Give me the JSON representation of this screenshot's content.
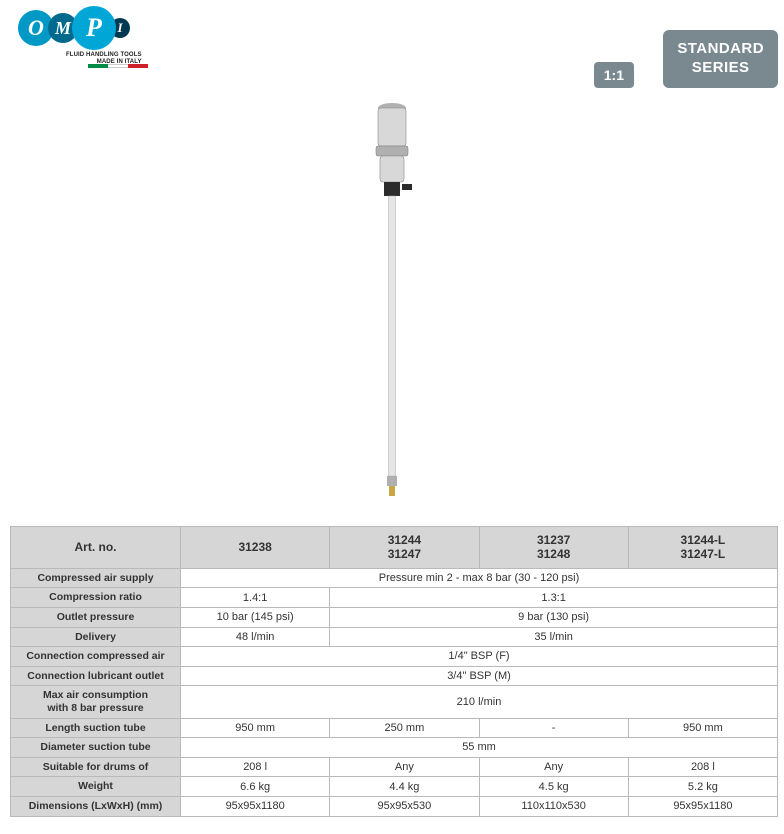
{
  "brand": {
    "letters": [
      "O",
      "M",
      "P",
      "I"
    ],
    "subline1": "FLUID HANDLING TOOLS",
    "subline2": "MADE IN ITALY",
    "flag_colors": [
      "#008C45",
      "#ffffff",
      "#CD212A"
    ]
  },
  "badges": {
    "ratio": "1:1",
    "series_line1": "STANDARD",
    "series_line2": "SERIES",
    "series_bg": "#7a8890"
  },
  "product_image": {
    "body_color": "#d8d8d8",
    "cap_color": "#b0b0b0",
    "collar_color": "#2b2b2b",
    "tube_color": "#e6e6e6",
    "tip_color": "#c9a742"
  },
  "table": {
    "header_bg": "#d6d6d6",
    "border_color": "#b9b9b9",
    "label_fontsize": 10.5,
    "cell_fontsize": 11,
    "columns": {
      "label_header": "Art. no.",
      "c1": [
        "31238"
      ],
      "c2": [
        "31244",
        "31247"
      ],
      "c3": [
        "31237",
        "31248"
      ],
      "c4": [
        "31244-L",
        "31247-L"
      ]
    },
    "rows": [
      {
        "label": "Compressed air supply",
        "span": 4,
        "vals": [
          "Pressure min 2 - max 8 bar (30 - 120 psi)"
        ]
      },
      {
        "label": "Compression ratio",
        "spans": [
          1,
          3
        ],
        "vals": [
          "1.4:1",
          "1.3:1"
        ]
      },
      {
        "label": "Outlet pressure",
        "spans": [
          1,
          3
        ],
        "vals": [
          "10 bar (145 psi)",
          "9 bar (130 psi)"
        ]
      },
      {
        "label": "Delivery",
        "spans": [
          1,
          3
        ],
        "vals": [
          "48 l/min",
          "35 l/min"
        ]
      },
      {
        "label": "Connection compressed air",
        "span": 4,
        "vals": [
          "1/4\" BSP (F)"
        ]
      },
      {
        "label": "Connection lubricant outlet",
        "span": 4,
        "vals": [
          "3/4\" BSP (M)"
        ]
      },
      {
        "label": "Max air consumption\nwith 8 bar pressure",
        "span": 4,
        "vals": [
          "210  l/min"
        ]
      },
      {
        "label": "Length suction tube",
        "spans": [
          1,
          1,
          1,
          1
        ],
        "vals": [
          "950 mm",
          "250 mm",
          "-",
          "950 mm"
        ]
      },
      {
        "label": "Diameter suction tube",
        "span": 4,
        "vals": [
          "55 mm"
        ]
      },
      {
        "label": "Suitable for drums of",
        "spans": [
          1,
          1,
          1,
          1
        ],
        "vals": [
          "208 l",
          "Any",
          "Any",
          "208 l"
        ]
      },
      {
        "label": "Weight",
        "spans": [
          1,
          1,
          1,
          1
        ],
        "vals": [
          "6.6 kg",
          "4.4 kg",
          "4.5 kg",
          "5.2 kg"
        ]
      },
      {
        "label": "Dimensions (LxWxH) (mm)",
        "spans": [
          1,
          1,
          1,
          1
        ],
        "vals": [
          "95x95x1180",
          "95x95x530",
          "110x110x530",
          "95x95x1180"
        ]
      }
    ]
  }
}
